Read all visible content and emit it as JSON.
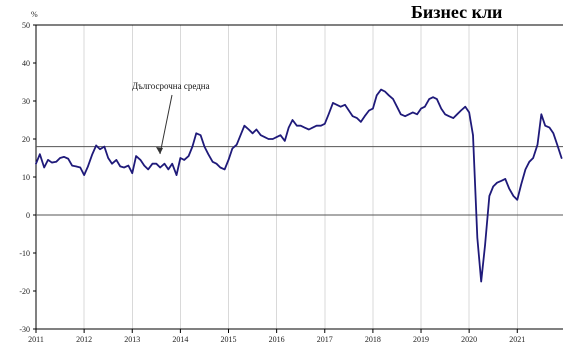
{
  "chart_data": {
    "type": "line",
    "title": "Бизнес кли",
    "unit_label": "%",
    "annotation": "Дългосрочна средна",
    "x_label": "",
    "y_label": "",
    "x_range": [
      2011.0,
      2021.95
    ],
    "y_range": [
      -30,
      50
    ],
    "y_ticks": [
      50,
      40,
      30,
      20,
      10,
      0,
      -10,
      -20,
      -30
    ],
    "x_ticks": [
      "2011",
      "2012",
      "2013",
      "2014",
      "2015",
      "2016",
      "2017",
      "2018",
      "2019",
      "2020",
      "2021"
    ],
    "long_term_average": 18,
    "grid": true,
    "series": [
      {
        "name": "",
        "x": [
          2011.0,
          2011.08,
          2011.17,
          2011.25,
          2011.33,
          2011.42,
          2011.5,
          2011.58,
          2011.67,
          2011.75,
          2011.83,
          2011.92,
          2012.0,
          2012.08,
          2012.17,
          2012.25,
          2012.33,
          2012.42,
          2012.5,
          2012.58,
          2012.67,
          2012.75,
          2012.83,
          2012.92,
          2013.0,
          2013.08,
          2013.17,
          2013.25,
          2013.33,
          2013.42,
          2013.5,
          2013.58,
          2013.67,
          2013.75,
          2013.83,
          2013.92,
          2014.0,
          2014.08,
          2014.17,
          2014.25,
          2014.33,
          2014.42,
          2014.5,
          2014.58,
          2014.67,
          2014.75,
          2014.83,
          2014.92,
          2015.0,
          2015.08,
          2015.17,
          2015.25,
          2015.33,
          2015.42,
          2015.5,
          2015.58,
          2015.67,
          2015.75,
          2015.83,
          2015.92,
          2016.0,
          2016.08,
          2016.17,
          2016.25,
          2016.33,
          2016.42,
          2016.5,
          2016.58,
          2016.67,
          2016.75,
          2016.83,
          2016.92,
          2017.0,
          2017.08,
          2017.17,
          2017.25,
          2017.33,
          2017.42,
          2017.5,
          2017.58,
          2017.67,
          2017.75,
          2017.83,
          2017.92,
          2018.0,
          2018.08,
          2018.17,
          2018.25,
          2018.33,
          2018.42,
          2018.5,
          2018.58,
          2018.67,
          2018.75,
          2018.83,
          2018.92,
          2019.0,
          2019.08,
          2019.17,
          2019.25,
          2019.33,
          2019.42,
          2019.5,
          2019.58,
          2019.67,
          2019.75,
          2019.83,
          2019.92,
          2020.0,
          2020.08,
          2020.17,
          2020.25,
          2020.33,
          2020.42,
          2020.5,
          2020.58,
          2020.67,
          2020.75,
          2020.83,
          2020.92,
          2021.0,
          2021.08,
          2021.17,
          2021.25,
          2021.33,
          2021.42,
          2021.5,
          2021.58,
          2021.67,
          2021.75,
          2021.83,
          2021.92
        ],
        "y": [
          13.5,
          16.0,
          12.5,
          14.5,
          13.8,
          14.0,
          15.0,
          15.3,
          14.8,
          13.0,
          12.8,
          12.5,
          10.5,
          12.8,
          16.0,
          18.3,
          17.3,
          18.0,
          15.0,
          13.5,
          14.5,
          12.8,
          12.5,
          13.0,
          11.0,
          15.5,
          14.5,
          13.0,
          12.0,
          13.5,
          13.5,
          12.5,
          13.5,
          12.0,
          13.5,
          10.5,
          15.0,
          14.5,
          15.5,
          18.0,
          21.5,
          21.0,
          18.0,
          16.0,
          14.0,
          13.5,
          12.5,
          12.0,
          14.5,
          17.5,
          18.5,
          21.0,
          23.5,
          22.5,
          21.5,
          22.5,
          21.0,
          20.5,
          20.0,
          20.0,
          20.5,
          21.0,
          19.5,
          23.0,
          25.0,
          23.5,
          23.5,
          23.0,
          22.5,
          23.0,
          23.5,
          23.5,
          24.0,
          26.5,
          29.5,
          29.0,
          28.5,
          29.0,
          27.5,
          26.0,
          25.5,
          24.5,
          26.0,
          27.5,
          28.0,
          31.5,
          33.0,
          32.5,
          31.5,
          30.5,
          28.5,
          26.5,
          26.0,
          26.5,
          27.0,
          26.5,
          28.0,
          28.5,
          30.5,
          31.0,
          30.5,
          28.0,
          26.5,
          26.0,
          25.5,
          26.5,
          27.5,
          28.5,
          27.0,
          21.0,
          -6.0,
          -17.5,
          -8.0,
          5.0,
          7.5,
          8.5,
          9.0,
          9.5,
          7.0,
          5.0,
          4.0,
          8.0,
          12.0,
          14.0,
          15.0,
          18.5,
          26.5,
          23.5,
          23.0,
          21.5,
          18.5,
          15.0
        ]
      }
    ],
    "colors": {
      "series": "#1f1a7a",
      "axis": "#000000",
      "grid": "#d9d9d9",
      "reference_line": "#555555",
      "zero_line": "#555555"
    }
  }
}
